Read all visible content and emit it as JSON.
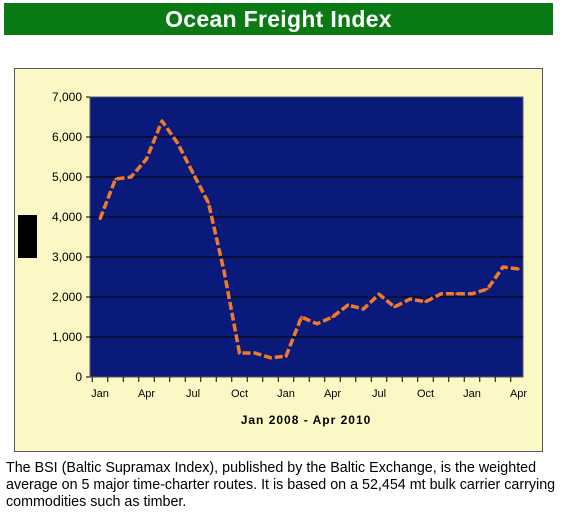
{
  "header": {
    "title": "Ocean Freight Index"
  },
  "caption": "The BSI (Baltic Supramax Index), published by the Baltic Exchange, is the weighted average on 5 major time-charter routes. It is based on a 52,454 mt bulk carrier carrying commodities such as timber.",
  "colors": {
    "title_bg": "#0a7a14",
    "panel_bg": "#fbf8c6",
    "plot_bg": "#0a1a7a",
    "line": "#f07a2a"
  },
  "chart_data": {
    "type": "line",
    "title": "",
    "xlabel": "Jan 2008 - Apr 2010",
    "ylabel": "",
    "ylim": [
      0,
      7000
    ],
    "y_ticks": [
      "0",
      "1,000",
      "2,000",
      "3,000",
      "4,000",
      "5,000",
      "6,000",
      "7,000"
    ],
    "x_tick_labels": [
      "Jan",
      "Apr",
      "Jul",
      "Oct",
      "Jan",
      "Apr",
      "Jul",
      "Oct",
      "Jan",
      "Apr"
    ],
    "line_style": "dashed",
    "grid": "horizontal",
    "x": [
      "2008-01",
      "2008-02",
      "2008-03",
      "2008-04",
      "2008-05",
      "2008-06",
      "2008-07",
      "2008-08",
      "2008-09",
      "2008-10",
      "2008-11",
      "2008-12",
      "2009-01",
      "2009-02",
      "2009-03",
      "2009-04",
      "2009-05",
      "2009-06",
      "2009-07",
      "2009-08",
      "2009-09",
      "2009-10",
      "2009-11",
      "2009-12",
      "2010-01",
      "2010-02",
      "2010-03",
      "2010-04"
    ],
    "series": [
      {
        "values": [
          3950,
          4950,
          5000,
          5450,
          6400,
          5850,
          5100,
          4350,
          2650,
          600,
          600,
          480,
          520,
          1500,
          1330,
          1500,
          1800,
          1700,
          2070,
          1750,
          1950,
          1880,
          2080,
          2080,
          2080,
          2200,
          2750,
          2700
        ]
      }
    ]
  }
}
